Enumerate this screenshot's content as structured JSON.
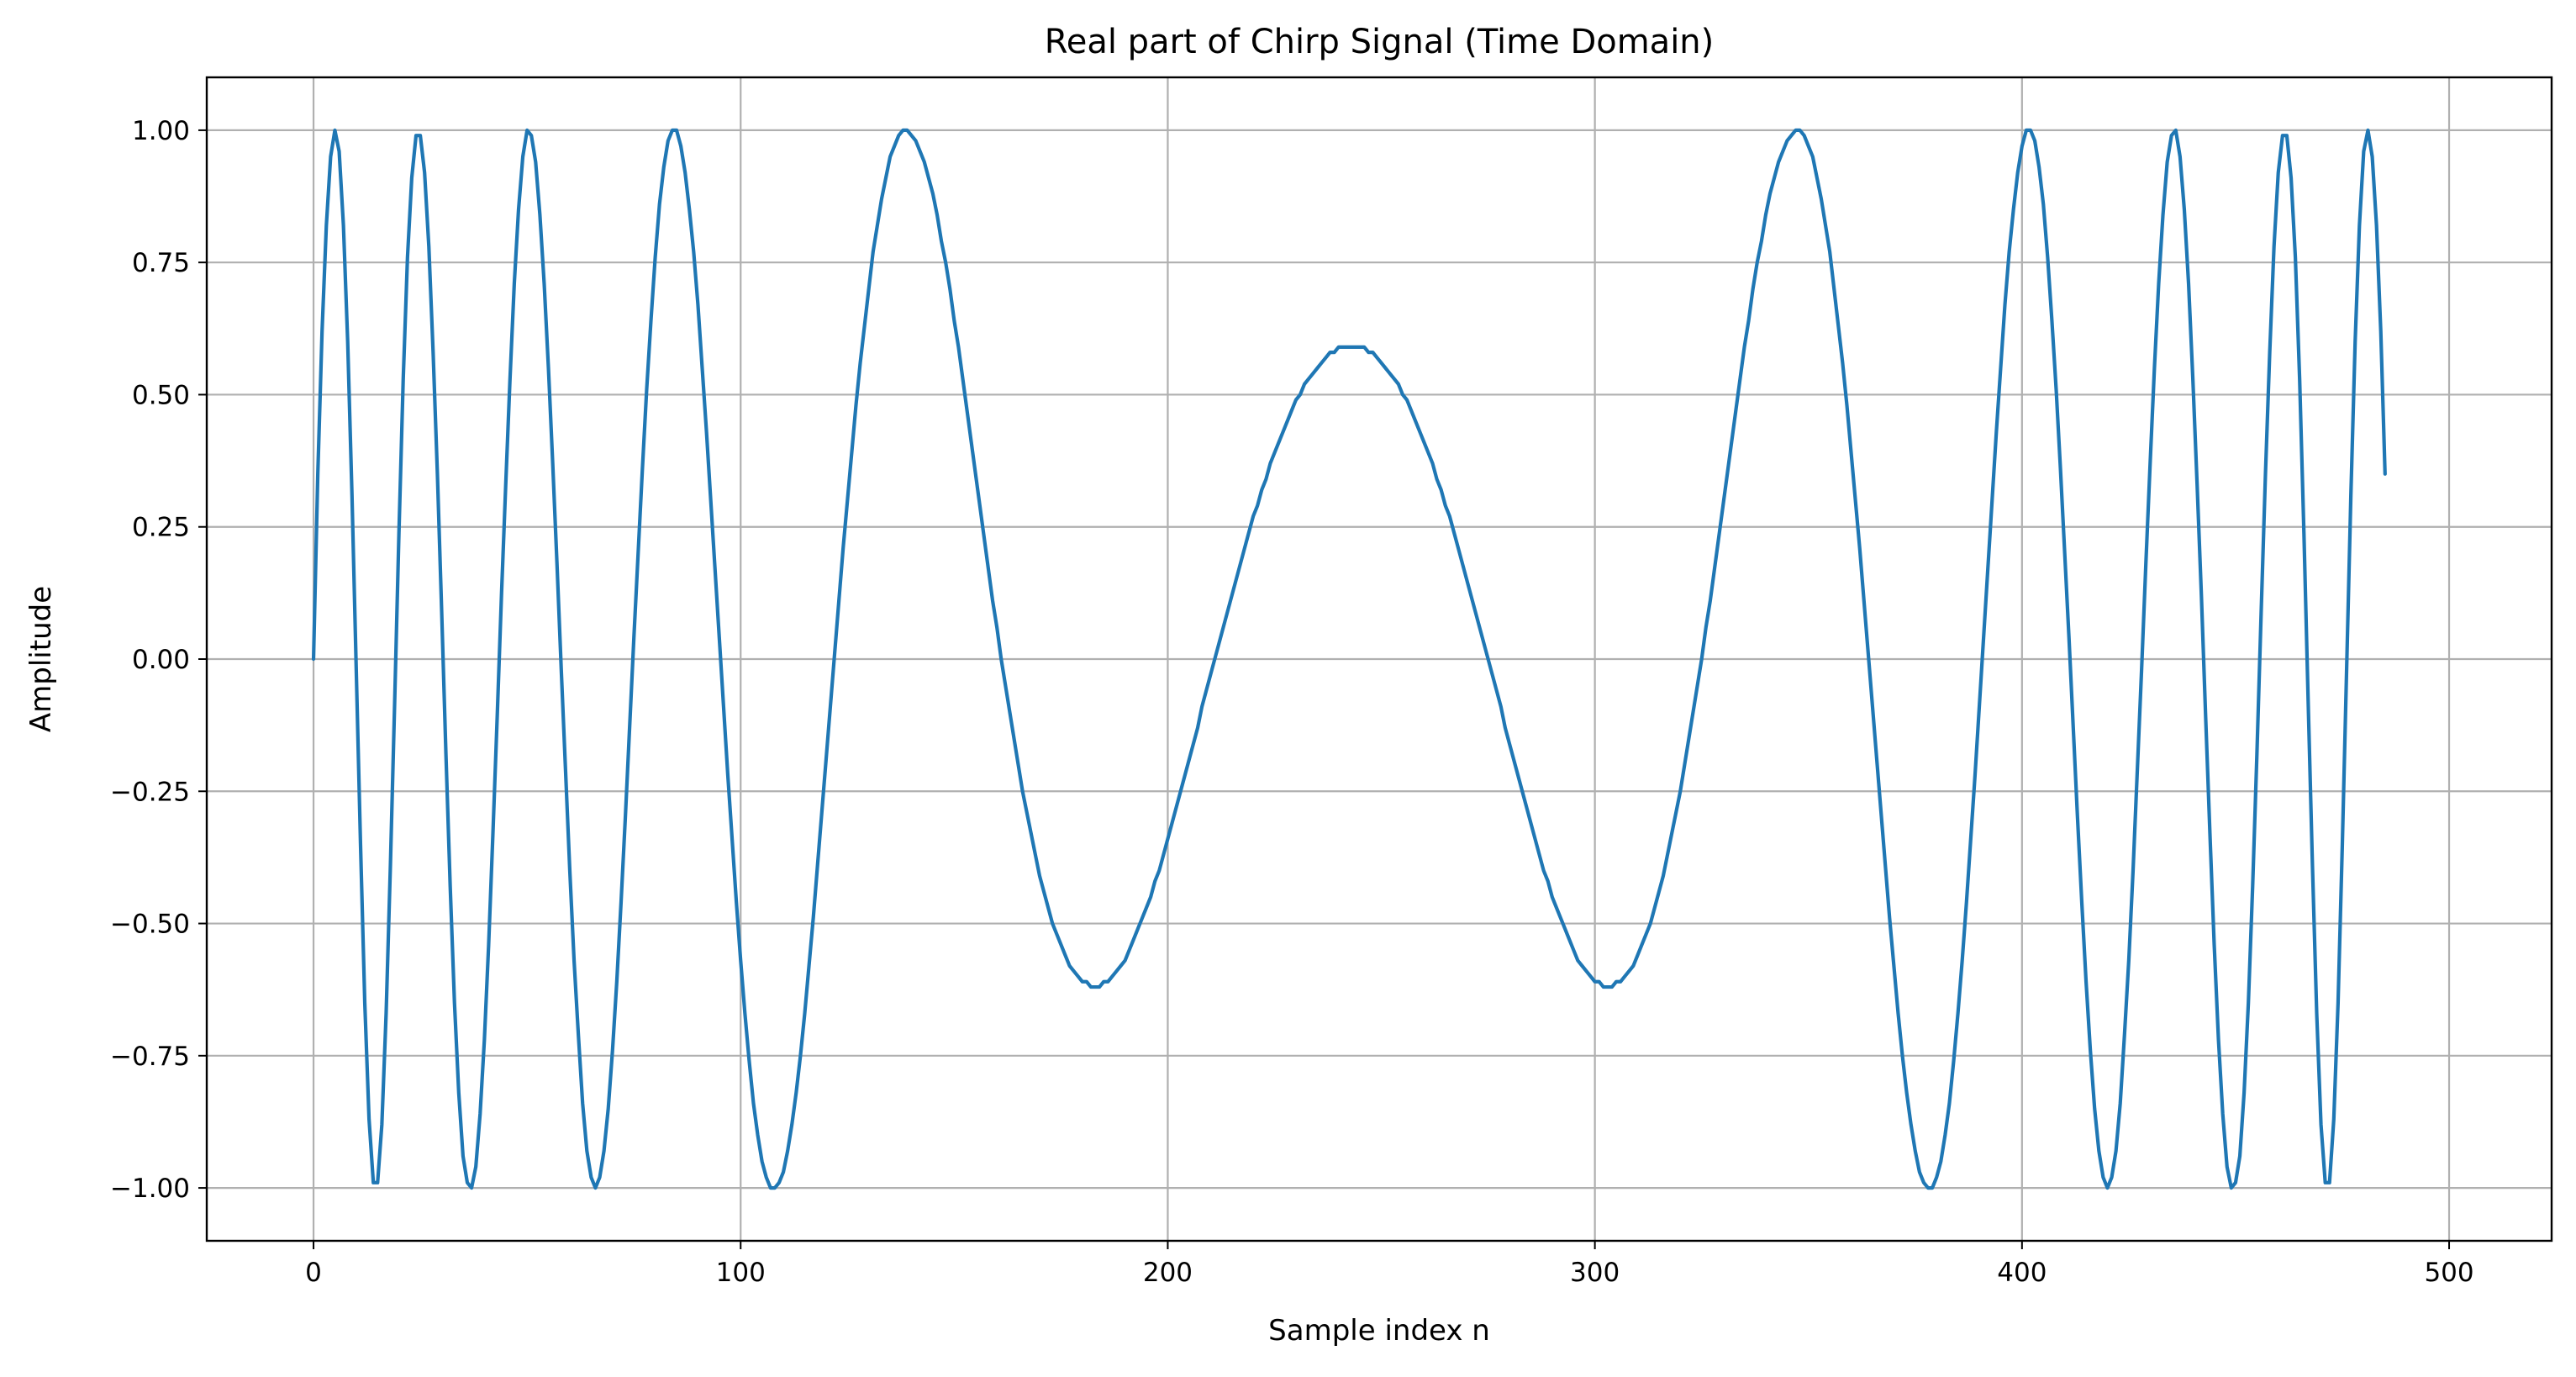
{
  "chart_data": {
    "type": "line",
    "title": "Real part of Chirp Signal (Time Domain)",
    "xlabel": "Sample index n",
    "ylabel": "Amplitude",
    "xlim": [
      -25,
      524
    ],
    "ylim": [
      -1.1,
      1.1
    ],
    "x_ticks": [
      0,
      100,
      200,
      300,
      400,
      500
    ],
    "x_tick_labels": [
      "0",
      "100",
      "200",
      "300",
      "400",
      "500"
    ],
    "y_ticks": [
      1.0,
      0.75,
      0.5,
      0.25,
      0.0,
      -0.25,
      -0.5,
      -0.75,
      -1.0
    ],
    "y_tick_labels": [
      "1.00",
      "0.75",
      "0.50",
      "0.25",
      "0.00",
      "−0.25",
      "−0.50",
      "−0.75",
      "−1.00"
    ],
    "grid": true,
    "series": [
      {
        "color": "#1f77b4",
        "x_start": 0,
        "x_step": 1,
        "values": [
          0.0,
          0.35,
          0.62,
          0.82,
          0.95,
          1.0,
          0.96,
          0.82,
          0.6,
          0.31,
          -0.02,
          -0.35,
          -0.65,
          -0.87,
          -0.99,
          -0.99,
          -0.88,
          -0.67,
          -0.39,
          -0.08,
          0.24,
          0.53,
          0.76,
          0.91,
          0.99,
          0.99,
          0.92,
          0.78,
          0.58,
          0.35,
          0.09,
          -0.18,
          -0.43,
          -0.65,
          -0.82,
          -0.94,
          -0.99,
          -1.0,
          -0.96,
          -0.86,
          -0.72,
          -0.54,
          -0.33,
          -0.11,
          0.12,
          0.33,
          0.53,
          0.71,
          0.85,
          0.95,
          1.0,
          0.99,
          0.94,
          0.84,
          0.71,
          0.55,
          0.37,
          0.18,
          -0.02,
          -0.21,
          -0.4,
          -0.57,
          -0.71,
          -0.84,
          -0.93,
          -0.98,
          -1.0,
          -0.98,
          -0.93,
          -0.85,
          -0.74,
          -0.61,
          -0.46,
          -0.3,
          -0.13,
          0.04,
          0.2,
          0.36,
          0.51,
          0.64,
          0.76,
          0.86,
          0.93,
          0.98,
          1.0,
          1.0,
          0.97,
          0.92,
          0.85,
          0.77,
          0.67,
          0.55,
          0.43,
          0.3,
          0.17,
          0.04,
          -0.09,
          -0.22,
          -0.34,
          -0.46,
          -0.57,
          -0.67,
          -0.76,
          -0.84,
          -0.9,
          -0.95,
          -0.98,
          -1.0,
          -1.0,
          -0.99,
          -0.97,
          -0.93,
          -0.88,
          -0.82,
          -0.75,
          -0.67,
          -0.58,
          -0.49,
          -0.39,
          -0.29,
          -0.19,
          -0.09,
          0.01,
          0.11,
          0.21,
          0.3,
          0.39,
          0.48,
          0.56,
          0.63,
          0.7,
          0.77,
          0.82,
          0.87,
          0.91,
          0.95,
          0.97,
          0.99,
          1.0,
          1.0,
          0.99,
          0.98,
          0.96,
          0.94,
          0.91,
          0.88,
          0.84,
          0.79,
          0.75,
          0.7,
          0.64,
          0.59,
          0.53,
          0.47,
          0.41,
          0.35,
          0.29,
          0.23,
          0.17,
          0.11,
          0.06,
          0.0,
          -0.05,
          -0.1,
          -0.15,
          -0.2,
          -0.25,
          -0.29,
          -0.33,
          -0.37,
          -0.41,
          -0.44,
          -0.47,
          -0.5,
          -0.52,
          -0.54,
          -0.56,
          -0.58,
          -0.59,
          -0.6,
          -0.61,
          -0.61,
          -0.62,
          -0.62,
          -0.62,
          -0.61,
          -0.61,
          -0.6,
          -0.59,
          -0.58,
          -0.57,
          -0.55,
          -0.53,
          -0.51,
          -0.49,
          -0.47,
          -0.45,
          -0.42,
          -0.4,
          -0.37,
          -0.34,
          -0.31,
          -0.28,
          -0.25,
          -0.22,
          -0.19,
          -0.16,
          -0.13,
          -0.09,
          -0.06,
          -0.03,
          0.0,
          0.03,
          0.06,
          0.09,
          0.12,
          0.15,
          0.18,
          0.21,
          0.24,
          0.27,
          0.29,
          0.32,
          0.34,
          0.37,
          0.39,
          0.41,
          0.43,
          0.45,
          0.47,
          0.49,
          0.5,
          0.52,
          0.53,
          0.54,
          0.55,
          0.56,
          0.57,
          0.58,
          0.58,
          0.59,
          0.59,
          0.59,
          0.59,
          0.59,
          0.59,
          0.59,
          0.58,
          0.58,
          0.57,
          0.56,
          0.55,
          0.54,
          0.53,
          0.52,
          0.5,
          0.49,
          0.47,
          0.45,
          0.43,
          0.41,
          0.39,
          0.37,
          0.34,
          0.32,
          0.29,
          0.27,
          0.24,
          0.21,
          0.18,
          0.15,
          0.12,
          0.09,
          0.06,
          0.03,
          0.0,
          -0.03,
          -0.06,
          -0.09,
          -0.13,
          -0.16,
          -0.19,
          -0.22,
          -0.25,
          -0.28,
          -0.31,
          -0.34,
          -0.37,
          -0.4,
          -0.42,
          -0.45,
          -0.47,
          -0.49,
          -0.51,
          -0.53,
          -0.55,
          -0.57,
          -0.58,
          -0.59,
          -0.6,
          -0.61,
          -0.61,
          -0.62,
          -0.62,
          -0.62,
          -0.61,
          -0.61,
          -0.6,
          -0.59,
          -0.58,
          -0.56,
          -0.54,
          -0.52,
          -0.5,
          -0.47,
          -0.44,
          -0.41,
          -0.37,
          -0.33,
          -0.29,
          -0.25,
          -0.2,
          -0.15,
          -0.1,
          -0.05,
          0.0,
          0.06,
          0.11,
          0.17,
          0.23,
          0.29,
          0.35,
          0.41,
          0.47,
          0.53,
          0.59,
          0.64,
          0.7,
          0.75,
          0.79,
          0.84,
          0.88,
          0.91,
          0.94,
          0.96,
          0.98,
          0.99,
          1.0,
          1.0,
          0.99,
          0.97,
          0.95,
          0.91,
          0.87,
          0.82,
          0.77,
          0.7,
          0.63,
          0.56,
          0.48,
          0.39,
          0.3,
          0.21,
          0.11,
          0.01,
          -0.09,
          -0.19,
          -0.29,
          -0.39,
          -0.49,
          -0.58,
          -0.67,
          -0.75,
          -0.82,
          -0.88,
          -0.93,
          -0.97,
          -0.99,
          -1.0,
          -1.0,
          -0.98,
          -0.95,
          -0.9,
          -0.84,
          -0.76,
          -0.67,
          -0.57,
          -0.46,
          -0.34,
          -0.22,
          -0.09,
          0.04,
          0.17,
          0.3,
          0.43,
          0.55,
          0.67,
          0.77,
          0.85,
          0.92,
          0.97,
          1.0,
          1.0,
          0.98,
          0.93,
          0.86,
          0.76,
          0.64,
          0.51,
          0.36,
          0.2,
          0.04,
          -0.13,
          -0.3,
          -0.46,
          -0.61,
          -0.74,
          -0.85,
          -0.93,
          -0.98,
          -1.0,
          -0.98,
          -0.93,
          -0.84,
          -0.71,
          -0.57,
          -0.4,
          -0.21,
          -0.02,
          0.18,
          0.37,
          0.55,
          0.71,
          0.84,
          0.94,
          0.99,
          1.0,
          0.95,
          0.85,
          0.71,
          0.53,
          0.33,
          0.12,
          -0.11,
          -0.33,
          -0.54,
          -0.72,
          -0.86,
          -0.96,
          -1.0,
          -0.99,
          -0.94,
          -0.82,
          -0.65,
          -0.43,
          -0.18,
          0.09,
          0.35,
          0.58,
          0.78,
          0.92,
          0.99,
          0.99,
          0.91,
          0.76,
          0.53,
          0.24,
          -0.08,
          -0.39,
          -0.67,
          -0.88,
          -0.99,
          -0.99,
          -0.87,
          -0.65,
          -0.35,
          -0.02,
          0.31,
          0.6,
          0.82,
          0.96,
          1.0,
          0.95,
          0.82,
          0.62,
          0.35
        ]
      }
    ]
  }
}
